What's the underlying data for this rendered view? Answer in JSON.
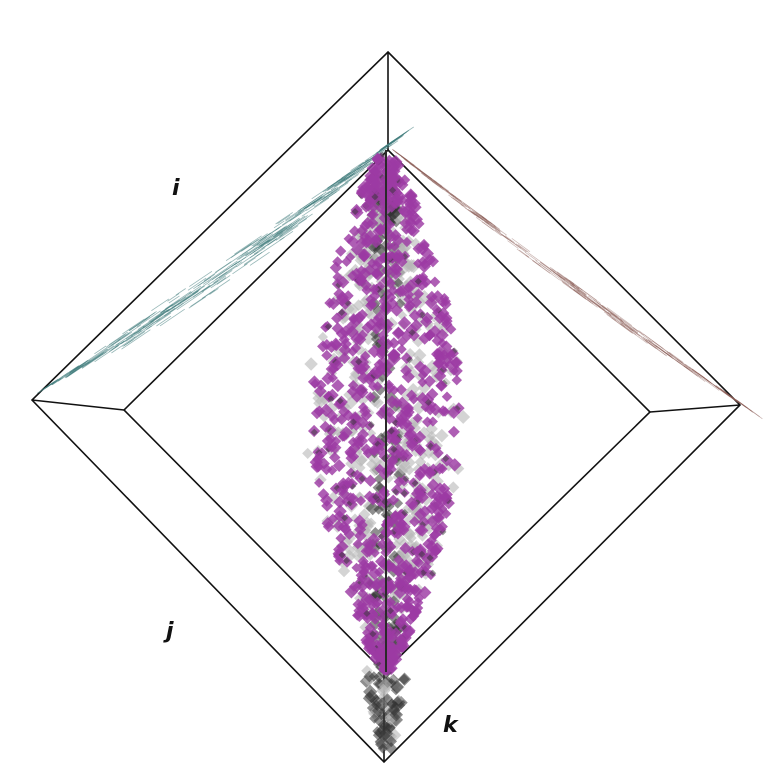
{
  "chart_data": {
    "type": "scatter",
    "projection": "3d-box",
    "axes": [
      {
        "name": "i",
        "label": "i"
      },
      {
        "name": "j",
        "label": "j"
      },
      {
        "name": "k",
        "label": "k"
      }
    ],
    "grid": false,
    "colors": {
      "main_cloud": "#9c3aa4",
      "shadow_cloud": "#b8b8b8",
      "shadow_dark": "#333333",
      "left_wall_projection": "#3f7c7c",
      "right_wall_projection": "#8a5a55",
      "frame": "#111111"
    },
    "series": [
      {
        "kind": "main-cloud",
        "color_key": "main_cloud",
        "count": 900,
        "seed": 11
      },
      {
        "kind": "floor-shadow",
        "color_key": "shadow_cloud",
        "count": 700,
        "seed": 23
      },
      {
        "kind": "left-wall-projection",
        "color_key": "left_wall_projection",
        "count": 260,
        "seed": 37
      },
      {
        "kind": "right-wall-projection",
        "color_key": "right_wall_projection",
        "count": 200,
        "seed": 41
      }
    ]
  }
}
